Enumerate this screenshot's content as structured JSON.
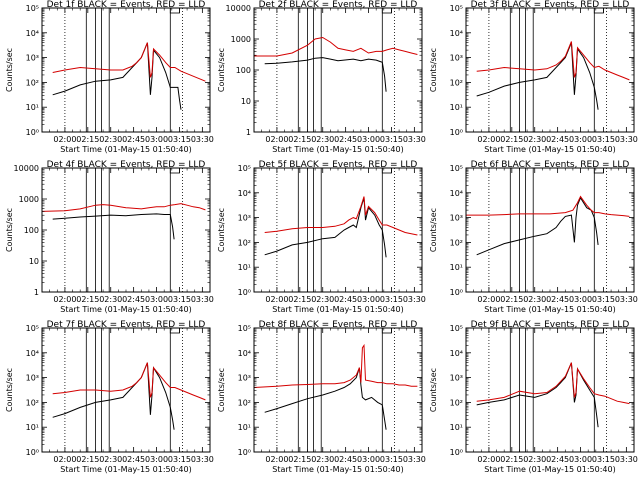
{
  "chart_data": {
    "type": "line",
    "common": {
      "xlabel": "Start Time (01-May-15 01:50:40)",
      "ylabel": "Counts/sec",
      "x_unit": "minutes after 02:00",
      "xlim": [
        -15,
        95
      ],
      "x_tick_labels": [
        "02:00",
        "02:15",
        "02:30",
        "02:45",
        "03:00",
        "03:15",
        "03:30"
      ],
      "x_tick_values": [
        0,
        15,
        30,
        45,
        60,
        75,
        90
      ],
      "dotted_vlines": [
        0,
        77
      ],
      "solid_vlines": [
        14,
        20,
        24,
        29,
        69
      ],
      "flag_box": [
        69,
        75
      ],
      "series_names": [
        "Events",
        "LLD"
      ],
      "series_colors": [
        "#000000",
        "#d40000"
      ]
    },
    "panels": [
      {
        "title": "Det 1f BLACK = Events, RED = LLD",
        "ylim_exp": [
          0,
          5
        ],
        "y_tick_labels": [
          "10⁰",
          "10¹",
          "10²",
          "10³",
          "10⁴",
          "10⁵"
        ],
        "series": [
          {
            "name": "Events",
            "x": [
              -8,
              0,
              10,
              20,
              30,
              38,
              44,
              47,
              50,
              54,
              56,
              57,
              58,
              62,
              66,
              69,
              70.5,
              71.5,
              72,
              74,
              75,
              76
            ],
            "y": [
              1.5,
              1.65,
              1.9,
              2.05,
              2.1,
              2.2,
              2.6,
              2.8,
              3.0,
              3.6,
              1.5,
              2.2,
              3.3,
              3.0,
              2.4,
              1.8,
              1.8,
              1.8,
              1.8,
              1.8,
              1.3,
              0.9
            ]
          },
          {
            "name": "LLD",
            "x": [
              -8,
              0,
              10,
              20,
              30,
              38,
              44,
              47,
              50,
              54,
              56,
              57,
              58,
              62,
              66,
              69,
              72,
              76,
              80,
              84,
              88,
              92
            ],
            "y": [
              2.4,
              2.5,
              2.6,
              2.55,
              2.5,
              2.5,
              2.65,
              2.8,
              3.0,
              3.6,
              2.2,
              2.4,
              3.35,
              3.1,
              2.8,
              2.6,
              2.6,
              2.45,
              2.35,
              2.25,
              2.15,
              2.05
            ]
          }
        ]
      },
      {
        "title": "Det 2f BLACK = Events, RED = LLD",
        "ylim_exp": [
          0,
          4
        ],
        "y_tick_labels": [
          "1",
          "10",
          "100",
          "1000",
          "10000"
        ],
        "series": [
          {
            "name": "Events",
            "x": [
              -8,
              0,
              10,
              20,
              25,
              30,
              35,
              40,
              50,
              55,
              60,
              65,
              69,
              70.5,
              71.5
            ],
            "y": [
              2.2,
              2.22,
              2.26,
              2.32,
              2.38,
              2.4,
              2.35,
              2.3,
              2.35,
              2.3,
              2.35,
              2.32,
              2.25,
              1.8,
              1.3
            ]
          },
          {
            "name": "LLD",
            "x": [
              -15,
              0,
              10,
              20,
              25,
              30,
              35,
              40,
              45,
              50,
              55,
              60,
              65,
              69,
              72,
              76,
              80,
              84,
              88,
              92
            ],
            "y": [
              2.45,
              2.45,
              2.55,
              2.8,
              3.0,
              3.05,
              2.9,
              2.7,
              2.65,
              2.6,
              2.7,
              2.55,
              2.6,
              2.6,
              2.65,
              2.7,
              2.65,
              2.6,
              2.55,
              2.5
            ]
          }
        ]
      },
      {
        "title": "Det 3f BLACK = Events, RED = LLD",
        "ylim_exp": [
          0,
          5
        ],
        "y_tick_labels": [
          "10⁰",
          "10¹",
          "10²",
          "10³",
          "10⁴",
          "10⁵"
        ],
        "series": [
          {
            "name": "Events",
            "x": [
              -8,
              0,
              10,
              20,
              30,
              38,
              44,
              47,
              50,
              54,
              56,
              57,
              58,
              62,
              66,
              69,
              70.5,
              71.5
            ],
            "y": [
              1.45,
              1.6,
              1.85,
              2.0,
              2.1,
              2.2,
              2.6,
              2.8,
              3.0,
              3.6,
              1.5,
              2.3,
              3.35,
              3.0,
              2.4,
              1.8,
              1.3,
              0.9
            ]
          },
          {
            "name": "LLD",
            "x": [
              -8,
              0,
              10,
              20,
              30,
              38,
              44,
              47,
              50,
              54,
              56,
              57,
              58,
              62,
              66,
              69,
              72,
              76,
              80,
              84,
              88,
              92
            ],
            "y": [
              2.45,
              2.5,
              2.6,
              2.55,
              2.5,
              2.55,
              2.7,
              2.85,
              3.05,
              3.65,
              2.2,
              2.4,
              3.4,
              3.1,
              2.8,
              2.6,
              2.65,
              2.5,
              2.4,
              2.3,
              2.2,
              2.1
            ]
          }
        ]
      },
      {
        "title": "Det 4f BLACK = Events, RED = LLD",
        "ylim_exp": [
          0,
          4
        ],
        "y_tick_labels": [
          "1",
          "10",
          "100",
          "1000",
          "10000"
        ],
        "series": [
          {
            "name": "Events",
            "x": [
              -8,
              0,
              10,
              20,
              30,
              40,
              50,
              60,
              65,
              69,
              70.5,
              71.5
            ],
            "y": [
              2.35,
              2.38,
              2.42,
              2.45,
              2.48,
              2.46,
              2.5,
              2.52,
              2.5,
              2.5,
              2.1,
              1.7
            ]
          },
          {
            "name": "LLD",
            "x": [
              -15,
              0,
              10,
              20,
              25,
              30,
              40,
              50,
              55,
              60,
              65,
              69,
              72,
              76,
              80,
              84,
              88,
              92
            ],
            "y": [
              2.6,
              2.62,
              2.68,
              2.8,
              2.82,
              2.8,
              2.72,
              2.68,
              2.72,
              2.75,
              2.75,
              2.8,
              2.82,
              2.85,
              2.8,
              2.75,
              2.72,
              2.65
            ]
          }
        ]
      },
      {
        "title": "Det 5f BLACK = Events, RED = LLD",
        "ylim_exp": [
          0,
          5
        ],
        "y_tick_labels": [
          "10⁰",
          "10¹",
          "10²",
          "10³",
          "10⁴",
          "10⁵"
        ],
        "series": [
          {
            "name": "Events",
            "x": [
              -8,
              0,
              10,
              20,
              30,
              38,
              44,
              47,
              50,
              52,
              55,
              57,
              58,
              60,
              64,
              67,
              69,
              70.5,
              71.5
            ],
            "y": [
              1.5,
              1.65,
              1.9,
              2.0,
              2.15,
              2.2,
              2.5,
              2.6,
              2.7,
              2.6,
              3.4,
              3.8,
              2.9,
              3.4,
              3.1,
              2.7,
              2.5,
              1.9,
              1.4
            ]
          },
          {
            "name": "LLD",
            "x": [
              -8,
              0,
              10,
              20,
              30,
              38,
              44,
              47,
              50,
              52,
              55,
              57,
              58,
              60,
              64,
              67,
              69,
              72,
              76,
              80,
              84,
              88,
              92
            ],
            "y": [
              2.4,
              2.45,
              2.55,
              2.6,
              2.6,
              2.65,
              2.75,
              2.9,
              3.0,
              2.95,
              3.45,
              3.85,
              3.1,
              3.45,
              3.2,
              2.9,
              2.7,
              2.7,
              2.6,
              2.5,
              2.4,
              2.35,
              2.3
            ]
          }
        ]
      },
      {
        "title": "Det 6f BLACK = Events, RED = LLD",
        "ylim_exp": [
          0,
          5
        ],
        "y_tick_labels": [
          "10⁰",
          "10¹",
          "10²",
          "10³",
          "10⁴",
          "10⁵"
        ],
        "series": [
          {
            "name": "Events",
            "x": [
              -8,
              0,
              10,
              20,
              30,
              38,
              44,
              47,
              50,
              54,
              56,
              57,
              58,
              60,
              64,
              67,
              69,
              70.5,
              71.5
            ],
            "y": [
              1.5,
              1.7,
              1.95,
              2.1,
              2.25,
              2.35,
              2.6,
              2.85,
              3.05,
              3.1,
              2.0,
              3.0,
              3.5,
              3.8,
              3.4,
              3.3,
              3.0,
              2.4,
              1.9
            ]
          },
          {
            "name": "LLD",
            "x": [
              -15,
              0,
              10,
              20,
              30,
              40,
              50,
              55,
              57,
              58,
              60,
              64,
              67,
              69,
              72,
              76,
              80,
              84,
              88,
              92
            ],
            "y": [
              3.1,
              3.1,
              3.12,
              3.15,
              3.15,
              3.15,
              3.2,
              3.3,
              3.5,
              3.6,
              3.85,
              3.5,
              3.3,
              3.2,
              3.2,
              3.15,
              3.12,
              3.1,
              3.08,
              3.05
            ]
          }
        ]
      },
      {
        "title": "Det 7f BLACK = Events, RED = LLD",
        "ylim_exp": [
          0,
          5
        ],
        "y_tick_labels": [
          "10⁰",
          "10¹",
          "10²",
          "10³",
          "10⁴",
          "10⁵"
        ],
        "series": [
          {
            "name": "Events",
            "x": [
              -8,
              0,
              10,
              20,
              30,
              38,
              44,
              47,
              50,
              54,
              56,
              57,
              58,
              62,
              66,
              69,
              70.5,
              71.5
            ],
            "y": [
              1.4,
              1.55,
              1.8,
              2.0,
              2.1,
              2.2,
              2.6,
              2.8,
              3.0,
              3.6,
              1.5,
              2.3,
              3.4,
              3.0,
              2.4,
              1.8,
              1.3,
              0.9
            ]
          },
          {
            "name": "LLD",
            "x": [
              -8,
              0,
              10,
              20,
              30,
              38,
              44,
              47,
              50,
              54,
              56,
              57,
              58,
              62,
              66,
              69,
              72,
              76,
              80,
              84,
              88,
              92
            ],
            "y": [
              2.35,
              2.4,
              2.5,
              2.5,
              2.45,
              2.5,
              2.65,
              2.8,
              3.0,
              3.6,
              2.2,
              2.4,
              3.4,
              3.1,
              2.8,
              2.6,
              2.6,
              2.5,
              2.4,
              2.3,
              2.2,
              2.1
            ]
          }
        ]
      },
      {
        "title": "Det 8f BLACK = Events, RED = LLD",
        "ylim_exp": [
          0,
          5
        ],
        "y_tick_labels": [
          "10⁰",
          "10¹",
          "10²",
          "10³",
          "10⁴",
          "10⁵"
        ],
        "series": [
          {
            "name": "Events",
            "x": [
              -8,
              0,
              10,
              20,
              30,
              38,
              44,
              48,
              52,
              54,
              55,
              56,
              58,
              62,
              66,
              69,
              70.5,
              71.5
            ],
            "y": [
              1.6,
              1.75,
              1.95,
              2.15,
              2.3,
              2.45,
              2.6,
              2.75,
              3.0,
              3.4,
              2.7,
              2.2,
              2.1,
              2.2,
              2.0,
              1.9,
              1.3,
              0.9
            ]
          },
          {
            "name": "LLD",
            "x": [
              -15,
              0,
              10,
              20,
              30,
              38,
              44,
              48,
              52,
              54,
              55,
              56,
              57,
              58,
              62,
              66,
              69,
              72,
              76,
              80,
              84,
              88,
              92
            ],
            "y": [
              2.6,
              2.65,
              2.7,
              2.72,
              2.75,
              2.75,
              2.8,
              2.9,
              3.1,
              3.4,
              2.8,
              4.2,
              4.3,
              2.9,
              2.85,
              2.8,
              2.8,
              2.75,
              2.75,
              2.7,
              2.7,
              2.65,
              2.65
            ]
          }
        ]
      },
      {
        "title": "Det 9f BLACK = Events, RED = LLD",
        "ylim_exp": [
          0,
          5
        ],
        "y_tick_labels": [
          "10⁰",
          "10¹",
          "10²",
          "10³",
          "10⁴",
          "10⁵"
        ],
        "series": [
          {
            "name": "Events",
            "x": [
              -8,
              0,
              10,
              20,
              30,
              38,
              44,
              47,
              50,
              54,
              56,
              57,
              58,
              62,
              66,
              69,
              70.5,
              71.5
            ],
            "y": [
              1.9,
              2.0,
              2.1,
              2.3,
              2.2,
              2.35,
              2.6,
              2.8,
              3.0,
              3.6,
              2.0,
              2.3,
              3.35,
              2.9,
              2.5,
              2.2,
              1.5,
              1.0
            ]
          },
          {
            "name": "LLD",
            "x": [
              -8,
              0,
              10,
              20,
              30,
              38,
              44,
              47,
              50,
              54,
              56,
              57,
              58,
              62,
              66,
              69,
              72,
              76,
              80,
              84,
              88,
              92
            ],
            "y": [
              2.05,
              2.1,
              2.2,
              2.45,
              2.35,
              2.4,
              2.65,
              2.85,
              3.05,
              3.6,
              2.2,
              2.4,
              3.35,
              2.95,
              2.6,
              2.35,
              2.3,
              2.25,
              2.15,
              2.05,
              2.0,
              1.95
            ]
          }
        ]
      }
    ]
  }
}
